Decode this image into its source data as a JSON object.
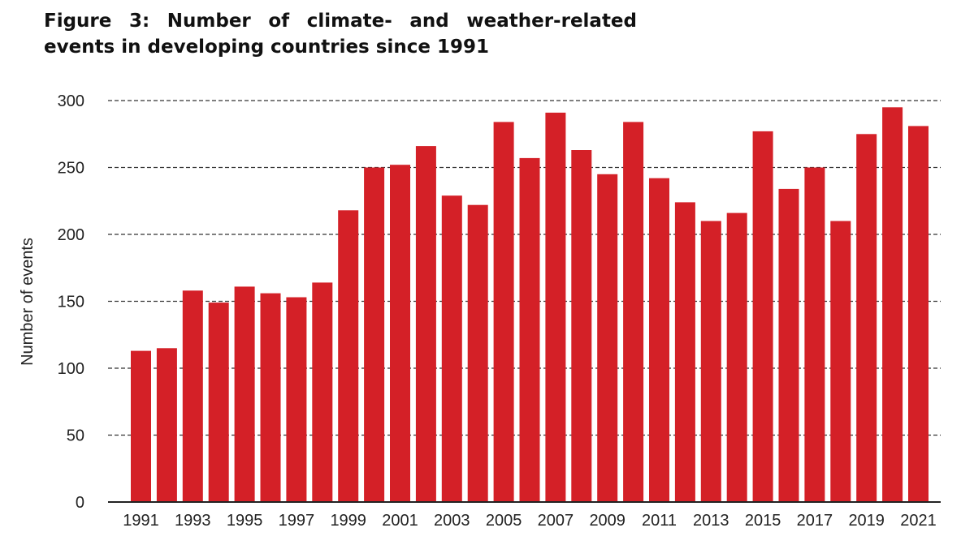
{
  "chart_data": {
    "type": "bar",
    "title_line1": "Figure 3: Number of climate- and weather-related",
    "title_line2": "events in developing countries since 1991",
    "xlabel": "",
    "ylabel": "Number of events",
    "ylim": [
      0,
      300
    ],
    "yticks": [
      0,
      50,
      100,
      150,
      200,
      250,
      300
    ],
    "grid": "horizontal-dashed",
    "bar_color": "#d42027",
    "categories": [
      "1991",
      "1992",
      "1993",
      "1994",
      "1995",
      "1996",
      "1997",
      "1998",
      "1999",
      "2000",
      "2001",
      "2002",
      "2003",
      "2004",
      "2005",
      "2006",
      "2007",
      "2008",
      "2009",
      "2010",
      "2011",
      "2012",
      "2013",
      "2014",
      "2015",
      "2016",
      "2017",
      "2018",
      "2019",
      "2020",
      "2021"
    ],
    "x_tick_labels": [
      "1991",
      "",
      "1993",
      "",
      "1995",
      "",
      "1997",
      "",
      "1999",
      "",
      "2001",
      "",
      "2003",
      "",
      "2005",
      "",
      "2007",
      "",
      "2009",
      "",
      "2011",
      "",
      "2013",
      "",
      "2015",
      "",
      "2017",
      "",
      "2019",
      "",
      "2021"
    ],
    "values": [
      113,
      115,
      158,
      149,
      161,
      156,
      153,
      164,
      218,
      250,
      252,
      266,
      229,
      222,
      284,
      257,
      291,
      263,
      245,
      284,
      242,
      224,
      210,
      216,
      277,
      234,
      250,
      210,
      275,
      295,
      281
    ]
  }
}
